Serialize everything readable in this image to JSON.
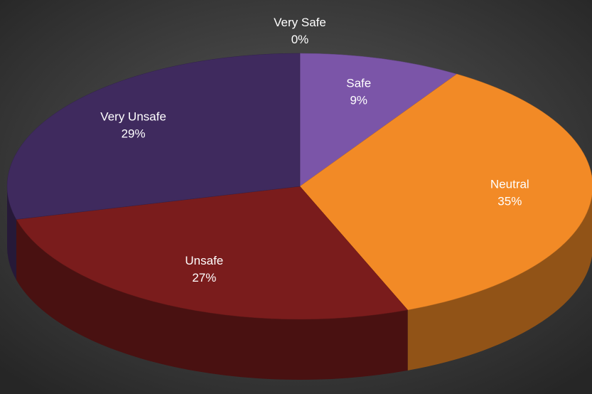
{
  "chart_data": {
    "type": "pie",
    "categories": [
      "Very Safe",
      "Safe",
      "Neutral",
      "Unsafe",
      "Very Unsafe"
    ],
    "values": [
      0,
      9,
      35,
      27,
      29
    ],
    "value_labels": [
      "0%",
      "9%",
      "35%",
      "27%",
      "29%"
    ],
    "colors": [
      "#4f81bd",
      "#7b55a8",
      "#f28a26",
      "#7a1c1c",
      "#3f2a5e"
    ]
  }
}
